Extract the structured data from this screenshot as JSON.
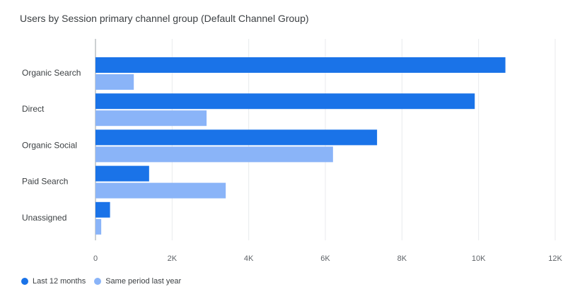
{
  "chart_data": {
    "type": "bar",
    "orientation": "horizontal",
    "title": "Users by Session primary channel group (Default Channel Group)",
    "categories": [
      "Organic Search",
      "Direct",
      "Organic Social",
      "Paid Search",
      "Unassigned"
    ],
    "series": [
      {
        "name": "Last 12 months",
        "color": "#1a73e8",
        "values": [
          10700,
          9900,
          7350,
          1400,
          380
        ]
      },
      {
        "name": "Same period last year",
        "color": "#8ab4f8",
        "values": [
          1000,
          2900,
          6200,
          3400,
          150
        ]
      }
    ],
    "xlim": [
      0,
      12000
    ],
    "xticks": [
      0,
      2000,
      4000,
      6000,
      8000,
      10000,
      12000
    ],
    "xtick_labels": [
      "0",
      "2K",
      "4K",
      "6K",
      "8K",
      "10K",
      "12K"
    ],
    "grid": true,
    "legend_position": "bottom-left"
  }
}
